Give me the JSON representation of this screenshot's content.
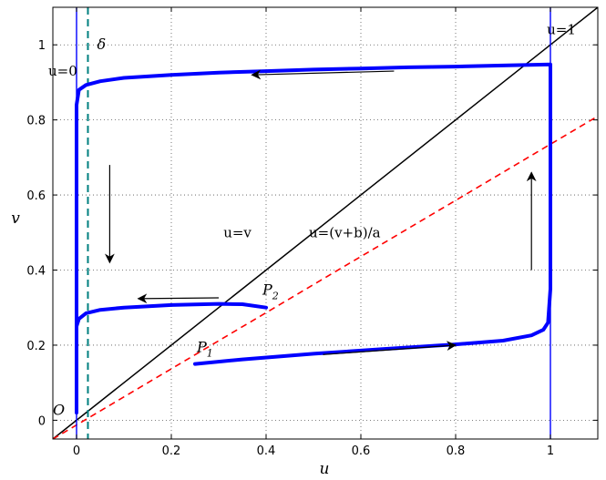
{
  "chart_data": {
    "type": "line",
    "title": "",
    "xlabel": "u",
    "ylabel": "v",
    "xlim": [
      -0.05,
      1.1
    ],
    "ylim": [
      -0.05,
      1.1
    ],
    "xticks": [
      0,
      0.2,
      0.4,
      0.6,
      0.8,
      1
    ],
    "xtick_labels": [
      "0",
      "0.2",
      "0.4",
      "0.6",
      "0.8",
      "1"
    ],
    "yticks": [
      0,
      0.2,
      0.4,
      0.6,
      0.8,
      1
    ],
    "ytick_labels": [
      "0",
      "0.2",
      "0.4",
      "0.6",
      "0.8",
      "1"
    ],
    "grid": true,
    "colors": {
      "trajectory": "#0000ff",
      "boundary": "#0000ff",
      "diagonal": "#000000",
      "nullcline": "#ff0000",
      "delta_line": "#008080"
    },
    "boundaries": [
      {
        "label": "u=0",
        "x": 0
      },
      {
        "label": "u=1",
        "x": 1
      }
    ],
    "delta_line": {
      "label": "δ",
      "x": 0.024
    },
    "diagonal": {
      "label": "u=v",
      "x": [
        -0.05,
        1.1
      ],
      "y": [
        -0.05,
        1.1
      ]
    },
    "nullcline": {
      "label": "u=(v+b)/a",
      "x": [
        -0.05,
        1.1
      ],
      "y": [
        -0.05,
        0.81
      ]
    },
    "trajectory_1": {
      "x": [
        0.25,
        0.35,
        0.5,
        0.65,
        0.8,
        0.9,
        0.96,
        0.985,
        0.995,
        1.0,
        1.0,
        1.0,
        1.0,
        1.0,
        0.9,
        0.8,
        0.7,
        0.6,
        0.5,
        0.4,
        0.3,
        0.2,
        0.1,
        0.05,
        0.02,
        0.005,
        0.0,
        0.0,
        0.0
      ],
      "y": [
        0.15,
        0.162,
        0.177,
        0.19,
        0.202,
        0.212,
        0.226,
        0.241,
        0.26,
        0.35,
        0.6,
        0.9,
        0.94,
        0.948,
        0.945,
        0.942,
        0.94,
        0.937,
        0.934,
        0.93,
        0.926,
        0.92,
        0.912,
        0.903,
        0.893,
        0.88,
        0.84,
        0.5,
        0.02
      ]
    },
    "trajectory_2": {
      "x": [
        0.4,
        0.35,
        0.3,
        0.2,
        0.1,
        0.05,
        0.02,
        0.005,
        0.0,
        0.0
      ],
      "y": [
        0.3,
        0.309,
        0.31,
        0.307,
        0.3,
        0.294,
        0.285,
        0.27,
        0.25,
        0.2
      ]
    },
    "points": [
      {
        "label": "O",
        "x": 0,
        "y": 0
      },
      {
        "label": "P",
        "subscript": "1",
        "x": 0.25,
        "y": 0.15
      },
      {
        "label": "P",
        "subscript": "2",
        "x": 0.4,
        "y": 0.3
      }
    ],
    "direction_arrows": [
      {
        "from": [
          0.67,
          0.93
        ],
        "to": [
          0.37,
          0.92
        ]
      },
      {
        "from": [
          0.07,
          0.68
        ],
        "to": [
          0.07,
          0.42
        ]
      },
      {
        "from": [
          0.3,
          0.326
        ],
        "to": [
          0.13,
          0.324
        ]
      },
      {
        "from": [
          0.52,
          0.175
        ],
        "to": [
          0.8,
          0.2
        ]
      },
      {
        "from": [
          0.96,
          0.4
        ],
        "to": [
          0.96,
          0.66
        ]
      }
    ]
  }
}
